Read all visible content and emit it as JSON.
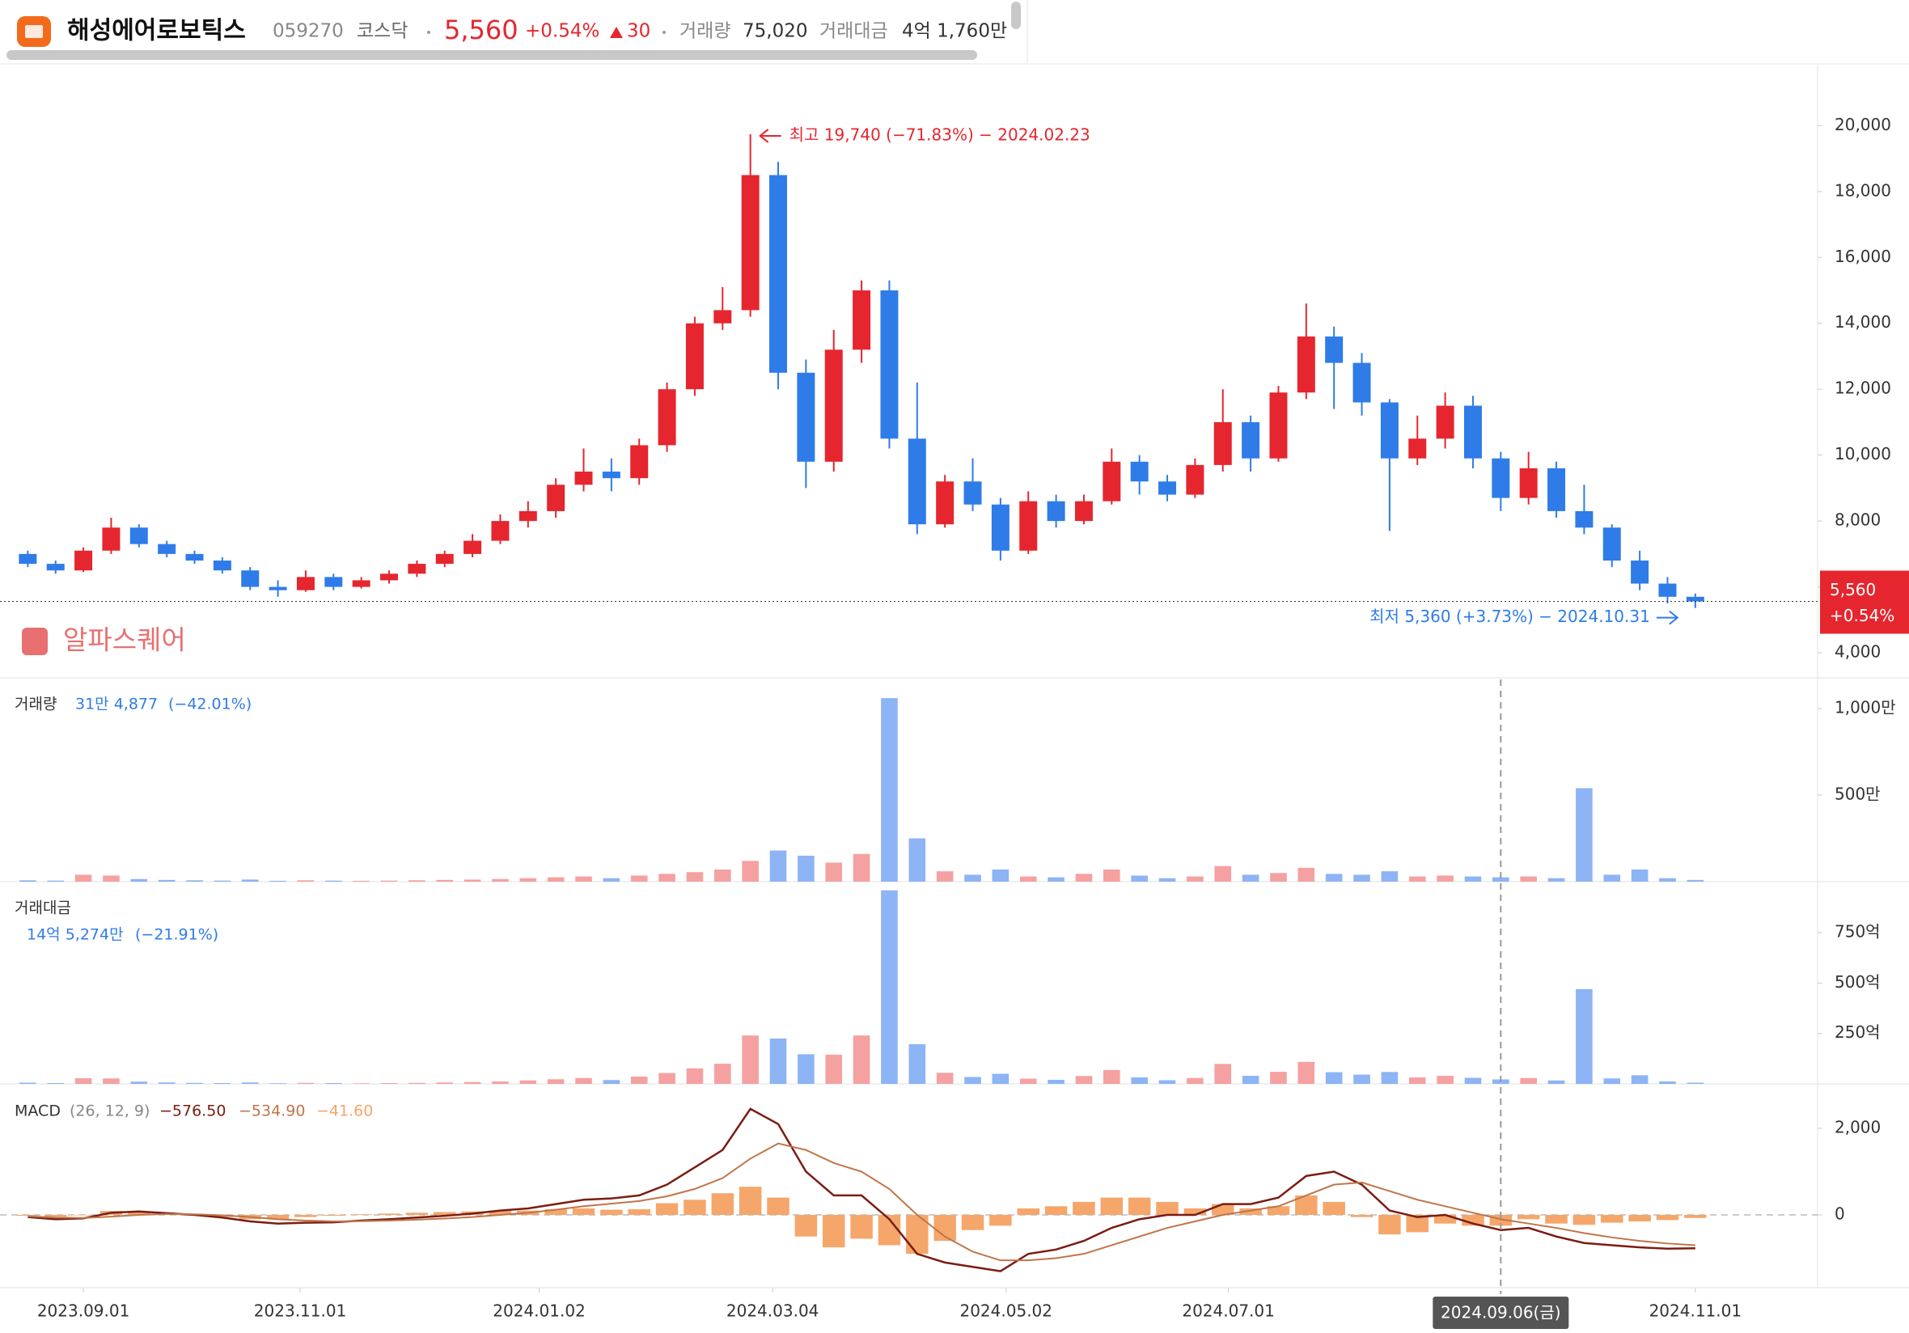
{
  "header": {
    "name": "해성에어로보틱스",
    "code": "059270",
    "market": "코스닥",
    "change_amount": "30",
    "volume_label": "거래량",
    "volume": "75,020",
    "value_label": "거래대금",
    "value": "4억 1,760만"
  },
  "chart_data": {
    "type": "candlestick",
    "watermark": "알파스퀘어",
    "x": [
      -10,
      -5,
      0,
      5,
      10,
      15,
      20,
      25,
      30,
      35,
      40,
      45,
      50,
      55,
      60,
      65,
      70,
      75,
      80,
      85,
      90,
      95,
      100,
      105,
      110,
      115,
      120,
      125,
      130,
      135,
      140,
      145,
      150,
      155,
      160,
      165,
      170,
      175,
      180,
      185,
      190,
      195,
      200,
      205,
      210,
      215,
      220,
      225,
      230,
      235,
      240,
      245,
      250,
      255,
      260,
      265,
      270,
      275,
      280,
      285,
      290
    ],
    "xlim": [
      -15,
      312
    ],
    "xticks": [
      {
        "value": 0,
        "label": "2023.09.01"
      },
      {
        "value": 39,
        "label": "2023.11.01"
      },
      {
        "value": 82,
        "label": "2024.01.02"
      },
      {
        "value": 124,
        "label": "2024.03.04"
      },
      {
        "value": 166,
        "label": "2024.05.02"
      },
      {
        "value": 206,
        "label": "2024.07.01"
      },
      {
        "value": 290,
        "label": "2024.11.01"
      }
    ],
    "crosshair": {
      "value": 255,
      "label": "2024.09.06(금)"
    },
    "ohlc": [
      [
        7000,
        7100,
        6600,
        6700
      ],
      [
        6700,
        6800,
        6400,
        6500
      ],
      [
        6500,
        7200,
        6450,
        7100
      ],
      [
        7100,
        8100,
        7000,
        7800
      ],
      [
        7800,
        7900,
        7200,
        7300
      ],
      [
        7300,
        7400,
        6900,
        7000
      ],
      [
        7000,
        7100,
        6700,
        6800
      ],
      [
        6800,
        6900,
        6400,
        6500
      ],
      [
        6500,
        6600,
        5900,
        6000
      ],
      [
        6000,
        6200,
        5700,
        5900
      ],
      [
        5900,
        6500,
        5850,
        6300
      ],
      [
        6300,
        6400,
        5900,
        6000
      ],
      [
        6000,
        6300,
        5950,
        6200
      ],
      [
        6200,
        6500,
        6100,
        6400
      ],
      [
        6400,
        6800,
        6300,
        6700
      ],
      [
        6700,
        7100,
        6600,
        7000
      ],
      [
        7000,
        7600,
        6900,
        7400
      ],
      [
        7400,
        8200,
        7300,
        8000
      ],
      [
        8000,
        8600,
        7800,
        8300
      ],
      [
        8300,
        9300,
        8100,
        9100
      ],
      [
        9100,
        10200,
        8900,
        9500
      ],
      [
        9500,
        9900,
        8900,
        9300
      ],
      [
        9300,
        10500,
        9100,
        10300
      ],
      [
        10300,
        12200,
        10100,
        12000
      ],
      [
        12000,
        14200,
        11800,
        14000
      ],
      [
        14000,
        15100,
        13800,
        14400
      ],
      [
        14400,
        19740,
        14200,
        18500
      ],
      [
        18500,
        18900,
        12000,
        12500
      ],
      [
        12500,
        12900,
        9000,
        9800
      ],
      [
        9800,
        13800,
        9500,
        13200
      ],
      [
        13200,
        15300,
        12800,
        15000
      ],
      [
        15000,
        15300,
        10200,
        10500
      ],
      [
        10500,
        12200,
        7600,
        7900
      ],
      [
        7900,
        9400,
        7800,
        9200
      ],
      [
        9200,
        9900,
        8300,
        8500
      ],
      [
        8500,
        8700,
        6800,
        7100
      ],
      [
        7100,
        8900,
        7000,
        8600
      ],
      [
        8600,
        8800,
        7800,
        8000
      ],
      [
        8000,
        8800,
        7900,
        8600
      ],
      [
        8600,
        10200,
        8500,
        9800
      ],
      [
        9800,
        10000,
        8800,
        9200
      ],
      [
        9200,
        9400,
        8600,
        8800
      ],
      [
        8800,
        9900,
        8700,
        9700
      ],
      [
        9700,
        12000,
        9500,
        11000
      ],
      [
        11000,
        11200,
        9500,
        9900
      ],
      [
        9900,
        12100,
        9800,
        11900
      ],
      [
        11900,
        14600,
        11700,
        13600
      ],
      [
        13600,
        13900,
        11400,
        12800
      ],
      [
        12800,
        13100,
        11200,
        11600
      ],
      [
        11600,
        11700,
        7700,
        9900
      ],
      [
        9900,
        11200,
        9700,
        10500
      ],
      [
        10500,
        11900,
        10200,
        11500
      ],
      [
        11500,
        11800,
        9600,
        9900
      ],
      [
        9900,
        10100,
        8300,
        8700
      ],
      [
        8700,
        10100,
        8500,
        9600
      ],
      [
        9600,
        9800,
        8100,
        8300
      ],
      [
        8300,
        9100,
        7600,
        7800
      ],
      [
        7800,
        7900,
        6600,
        6800
      ],
      [
        6800,
        7100,
        5900,
        6100
      ],
      [
        6100,
        6300,
        5500,
        5700
      ],
      [
        5700,
        5800,
        5360,
        5560
      ]
    ],
    "up_color": "#e5262e",
    "down_color": "#2f7ce8",
    "ylim": [
      3240,
      21850
    ],
    "yticks": [
      {
        "value": 4000,
        "label": "4,000"
      },
      {
        "value": 6000,
        "label": "6,000"
      },
      {
        "value": 8000,
        "label": "8,000"
      },
      {
        "value": 10000,
        "label": "10,000"
      },
      {
        "value": 12000,
        "label": "12,000"
      },
      {
        "value": 14000,
        "label": "14,000"
      },
      {
        "value": 16000,
        "label": "16,000"
      },
      {
        "value": 18000,
        "label": "18,000"
      },
      {
        "value": 20000,
        "label": "20,000"
      }
    ],
    "last_price": {
      "value": 5560,
      "label": "5,560"
    },
    "last_change": "+0.54%",
    "annotations": {
      "high": "최고 19,740 (−71.83%) − 2024.02.23",
      "low": "최저 5,360 (+3.73%) − 2024.10.31"
    },
    "volume": {
      "title": "거래량",
      "last": "31만 4,877",
      "change": "(−42.01%)",
      "values": [
        8,
        6,
        40,
        35,
        15,
        10,
        8,
        6,
        12,
        5,
        8,
        6,
        5,
        6,
        8,
        10,
        12,
        15,
        20,
        25,
        30,
        20,
        35,
        45,
        55,
        70,
        120,
        180,
        150,
        110,
        160,
        1060,
        250,
        60,
        40,
        70,
        30,
        25,
        45,
        70,
        35,
        20,
        30,
        90,
        40,
        50,
        80,
        45,
        40,
        60,
        30,
        35,
        30,
        25,
        30,
        20,
        540,
        40,
        70,
        20,
        10
      ],
      "ylim": [
        0,
        1168
      ],
      "yticks": [
        {
          "value": 500,
          "label": "500만"
        },
        {
          "value": 1000,
          "label": "1,000만"
        }
      ],
      "up_color": "#f5a1a1",
      "down_color": "#8db4f4"
    },
    "trading_value": {
      "title": "거래대금",
      "last": "14억 5,274만",
      "change": "(−21.91%)",
      "values": [
        6,
        4,
        28,
        27,
        11,
        7,
        5,
        4,
        7,
        3,
        5,
        4,
        3,
        4,
        5,
        7,
        9,
        12,
        17,
        23,
        29,
        19,
        36,
        54,
        77,
        100,
        240,
        225,
        147,
        145,
        240,
        960,
        197,
        55,
        34,
        50,
        26,
        20,
        39,
        69,
        32,
        18,
        29,
        99,
        40,
        60,
        109,
        58,
        46,
        59,
        32,
        40,
        30,
        22,
        29,
        17,
        470,
        27,
        43,
        12,
        6
      ],
      "ylim": [
        0,
        995
      ],
      "yticks": [
        {
          "value": 250,
          "label": "250억"
        },
        {
          "value": 500,
          "label": "500억"
        },
        {
          "value": 750,
          "label": "750억"
        }
      ],
      "up_color": "#f5a1a1",
      "down_color": "#8db4f4"
    },
    "macd": {
      "title": "MACD",
      "params": "(26, 12, 9)",
      "ylim": [
        -1682,
        2990
      ],
      "yticks": [
        0,
        {
          "value": 2000,
          "label": "2,000"
        }
      ],
      "series": [
        {
          "name": "−576.50",
          "color": "#7a1d12",
          "values": [
            -50,
            -100,
            -80,
            50,
            80,
            40,
            0,
            -60,
            -150,
            -200,
            -180,
            -170,
            -130,
            -100,
            -60,
            -20,
            30,
            100,
            150,
            250,
            350,
            380,
            450,
            700,
            1100,
            1500,
            2450,
            2100,
            1000,
            450,
            450,
            -100,
            -900,
            -1100,
            -1200,
            -1300,
            -900,
            -800,
            -600,
            -300,
            -100,
            0,
            0,
            250,
            250,
            400,
            900,
            1000,
            700,
            100,
            -50,
            0,
            -200,
            -350,
            -300,
            -500,
            -650,
            -700,
            -750,
            -780,
            -770
          ]
        },
        {
          "name": "−534.90",
          "color": "#c0754a",
          "values": [
            -30,
            -60,
            -70,
            -40,
            0,
            20,
            15,
            -10,
            -50,
            -100,
            -130,
            -150,
            -145,
            -130,
            -110,
            -85,
            -50,
            0,
            50,
            120,
            200,
            260,
            320,
            430,
            600,
            850,
            1300,
            1650,
            1500,
            1200,
            1000,
            600,
            0,
            -500,
            -850,
            -1050,
            -1050,
            -1000,
            -900,
            -700,
            -500,
            -300,
            -150,
            0,
            100,
            200,
            450,
            700,
            750,
            550,
            350,
            200,
            50,
            -100,
            -200,
            -300,
            -420,
            -520,
            -600,
            -660,
            -700
          ]
        },
        {
          "name": "−41.60",
          "color": "#f5a66b",
          "values": [
            -20,
            -40,
            -10,
            90,
            80,
            20,
            -15,
            -50,
            -100,
            -100,
            -50,
            -20,
            15,
            30,
            50,
            65,
            80,
            100,
            100,
            130,
            150,
            120,
            130,
            270,
            350,
            500,
            650,
            400,
            -500,
            -750,
            -550,
            -700,
            -900,
            -600,
            -350,
            -250,
            150,
            200,
            300,
            400,
            400,
            300,
            150,
            250,
            150,
            200,
            450,
            300,
            -50,
            -450,
            -400,
            -200,
            -250,
            -250,
            -100,
            -200,
            -230,
            -180,
            -150,
            -120,
            -70
          ]
        }
      ]
    }
  }
}
